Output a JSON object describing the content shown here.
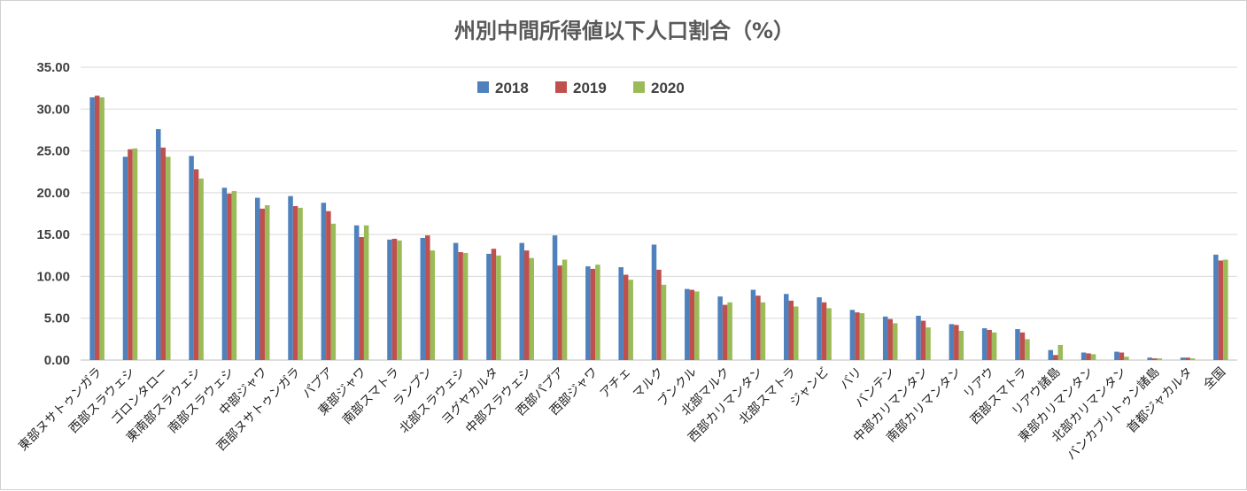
{
  "chart_data": {
    "type": "bar",
    "title": "州別中間所得値以下人口割合（%）",
    "xlabel": "",
    "ylabel": "",
    "ylim": [
      0,
      35
    ],
    "yticks": [
      "0.00",
      "5.00",
      "10.00",
      "15.00",
      "20.00",
      "25.00",
      "30.00",
      "35.00"
    ],
    "grid": true,
    "legend_position": "top-center",
    "categories": [
      "東部ヌサトゥンガラ",
      "西部スラウェシ",
      "ゴロンタロー",
      "東南部スラウェシ",
      "南部スラウェシ",
      "中部ジャワ",
      "西部ヌサトゥンガラ",
      "パプア",
      "東部ジャワ",
      "南部スマトラ",
      "ランプン",
      "北部スラウェシ",
      "ヨグヤカルタ",
      "中部スラウェシ",
      "西部パプア",
      "西部ジャワ",
      "アチェ",
      "マルク",
      "ブンクル",
      "北部マルク",
      "西部カリマンタン",
      "北部スマトラ",
      "ジャンビ",
      "バリ",
      "バンテン",
      "中部カリマンタン",
      "南部カリマンタン",
      "リアウ",
      "西部スマトラ",
      "リアウ諸島",
      "東部カリマンタン",
      "北部カリマンタン",
      "バンカブリトゥン諸島",
      "首都ジャカルタ",
      "全国"
    ],
    "series": [
      {
        "name": "2018",
        "color": "#4f81bd",
        "values": [
          31.4,
          24.3,
          27.6,
          24.4,
          20.6,
          19.4,
          19.6,
          18.8,
          16.1,
          14.4,
          14.6,
          14.0,
          12.7,
          14.0,
          14.9,
          11.2,
          11.1,
          13.8,
          8.5,
          7.6,
          8.4,
          7.9,
          7.5,
          6.0,
          5.2,
          5.3,
          4.3,
          3.8,
          3.7,
          1.2,
          0.9,
          1.0,
          0.3,
          0.3,
          12.6
        ]
      },
      {
        "name": "2019",
        "color": "#c0504d",
        "values": [
          31.6,
          25.2,
          25.4,
          22.8,
          19.9,
          18.1,
          18.4,
          17.8,
          14.7,
          14.5,
          14.9,
          12.9,
          13.3,
          13.1,
          11.3,
          10.9,
          10.2,
          10.8,
          8.4,
          6.6,
          7.7,
          7.1,
          6.9,
          5.7,
          4.9,
          4.7,
          4.2,
          3.6,
          3.3,
          0.6,
          0.8,
          0.9,
          0.2,
          0.3,
          11.9
        ]
      },
      {
        "name": "2020",
        "color": "#9bbb59",
        "values": [
          31.4,
          25.3,
          24.3,
          21.7,
          20.2,
          18.5,
          18.2,
          16.3,
          16.1,
          14.3,
          13.1,
          12.8,
          12.5,
          12.2,
          12.0,
          11.4,
          9.6,
          9.0,
          8.2,
          6.9,
          6.9,
          6.4,
          6.2,
          5.6,
          4.4,
          3.9,
          3.5,
          3.3,
          2.5,
          1.8,
          0.7,
          0.4,
          0.2,
          0.2,
          12.0
        ]
      }
    ]
  }
}
